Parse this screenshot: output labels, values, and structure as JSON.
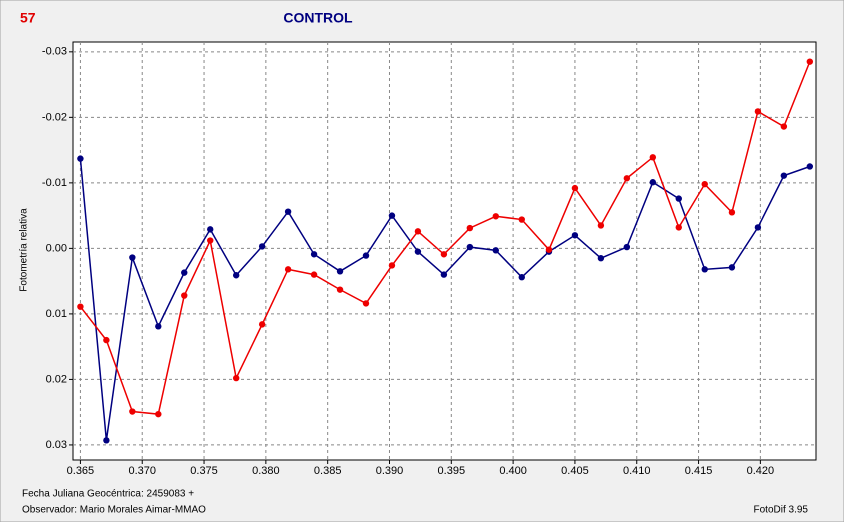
{
  "chart_data": {
    "type": "line",
    "label": "57",
    "title": "CONTROL",
    "y_label": "Fotometría relativa",
    "x_label": "Fecha Juliana Geocéntrica: 2459083 +",
    "observer": "Observador: Mario Morales Aimar-MMAO",
    "software": "FotoDif 3.95",
    "x": [
      0.365,
      0.3671,
      0.3692,
      0.3713,
      0.3734,
      0.3755,
      0.3776,
      0.3797,
      0.3818,
      0.3839,
      0.386,
      0.3881,
      0.3902,
      0.3923,
      0.3944,
      0.3965,
      0.3986,
      0.4007,
      0.4029,
      0.405,
      0.4071,
      0.4092,
      0.4113,
      0.4134,
      0.4155,
      0.4177,
      0.4198,
      0.4219,
      0.424
    ],
    "series": [
      {
        "color": "#000080",
        "values": [
          -0.0137,
          0.0293,
          0.0014,
          0.0119,
          0.0037,
          -0.0029,
          0.0041,
          -0.0003,
          -0.0056,
          0.0009,
          0.0035,
          0.0011,
          -0.005,
          0.0005,
          0.004,
          -0.0002,
          0.0003,
          0.0044,
          0.0005,
          -0.002,
          0.0015,
          -0.0002,
          -0.0101,
          -0.0076,
          0.0032,
          0.0029,
          -0.0032,
          -0.0111,
          -0.0125
        ]
      },
      {
        "color": "#ee0000",
        "values": [
          0.0089,
          0.014,
          0.0249,
          0.0253,
          0.0072,
          -0.0012,
          0.0198,
          0.0116,
          0.0032,
          0.004,
          0.0063,
          0.0084,
          0.0026,
          -0.0026,
          0.0009,
          -0.0031,
          -0.0049,
          -0.0044,
          0.0002,
          -0.0092,
          -0.0035,
          -0.0107,
          -0.0139,
          -0.0032,
          -0.0098,
          -0.0055,
          -0.0209,
          -0.0186,
          -0.0285
        ]
      }
    ],
    "xlim": [
      0.3644,
      0.4245
    ],
    "xticks": [
      0.365,
      {
        "value": 0.37,
        "label": "0.370"
      },
      0.375,
      {
        "value": 0.38,
        "label": "0.380"
      },
      0.385,
      {
        "value": 0.39,
        "label": "0.390"
      },
      0.395,
      {
        "value": 0.4,
        "label": "0.400"
      },
      0.405,
      {
        "value": 0.41,
        "label": "0.410"
      },
      0.415,
      {
        "value": 0.42,
        "label": "0.420"
      }
    ],
    "ylim": [
      -0.0315,
      0.0323
    ],
    "y_inverted": true,
    "yticks": [
      -0.03,
      {
        "value": -0.02,
        "label": "-0.02"
      },
      -0.01,
      {
        "value": 0,
        "label": "0.00"
      },
      0.01,
      0.02,
      0.03
    ],
    "grid": true
  }
}
